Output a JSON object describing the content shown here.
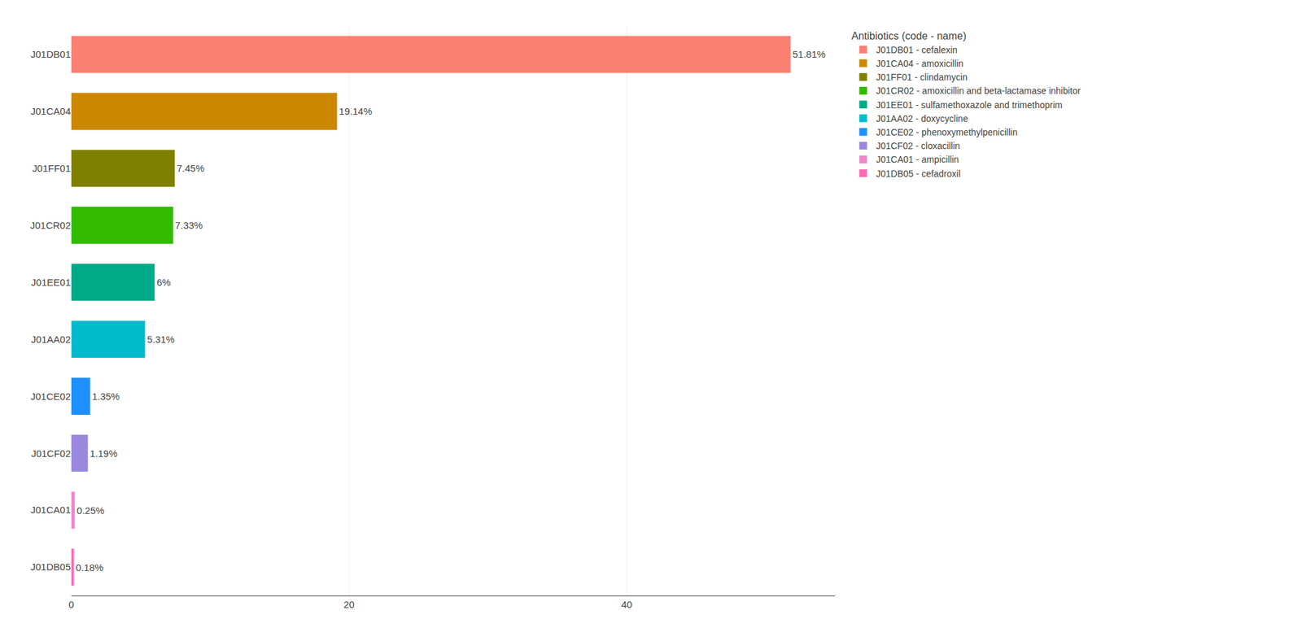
{
  "chart_data": {
    "type": "bar",
    "orientation": "horizontal",
    "categories": [
      "J01DB01",
      "J01CA04",
      "J01FF01",
      "J01CR02",
      "J01EE01",
      "J01AA02",
      "J01CE02",
      "J01CF02",
      "J01CA01",
      "J01DB05"
    ],
    "values": [
      51.81,
      19.14,
      7.45,
      7.33,
      6.0,
      5.31,
      1.35,
      1.19,
      0.25,
      0.18
    ],
    "value_labels": [
      "51.81%",
      "19.14%",
      "7.45%",
      "7.33%",
      "6%",
      "5.31%",
      "1.35%",
      "1.19%",
      "0.25%",
      "0.18%"
    ],
    "data_labels": true,
    "colors": [
      "#FA8072",
      "#CC8800",
      "#808000",
      "#33BB00",
      "#00AA88",
      "#00BBCC",
      "#1E90FF",
      "#9988DD",
      "#EE88CC",
      "#FF69B4"
    ],
    "legend_title": "Antibiotics (code - name)",
    "legend_entries": [
      "J01DB01 - cefalexin",
      "J01CA04 - amoxicillin",
      "J01FF01 - clindamycin",
      "J01CR02 - amoxicillin and beta-lactamase inhibitor",
      "J01EE01 - sulfamethoxazole and trimethoprim",
      "J01AA02 - doxycycline",
      "J01CE02 - phenoxymethylpenicillin",
      "J01CF02 - cloxacillin",
      "J01CA01 - ampicillin",
      "J01DB05 - cefadroxil"
    ],
    "legend": "right",
    "xlim": [
      0,
      55
    ],
    "xticks": [
      0,
      20,
      40
    ],
    "grid": true
  }
}
